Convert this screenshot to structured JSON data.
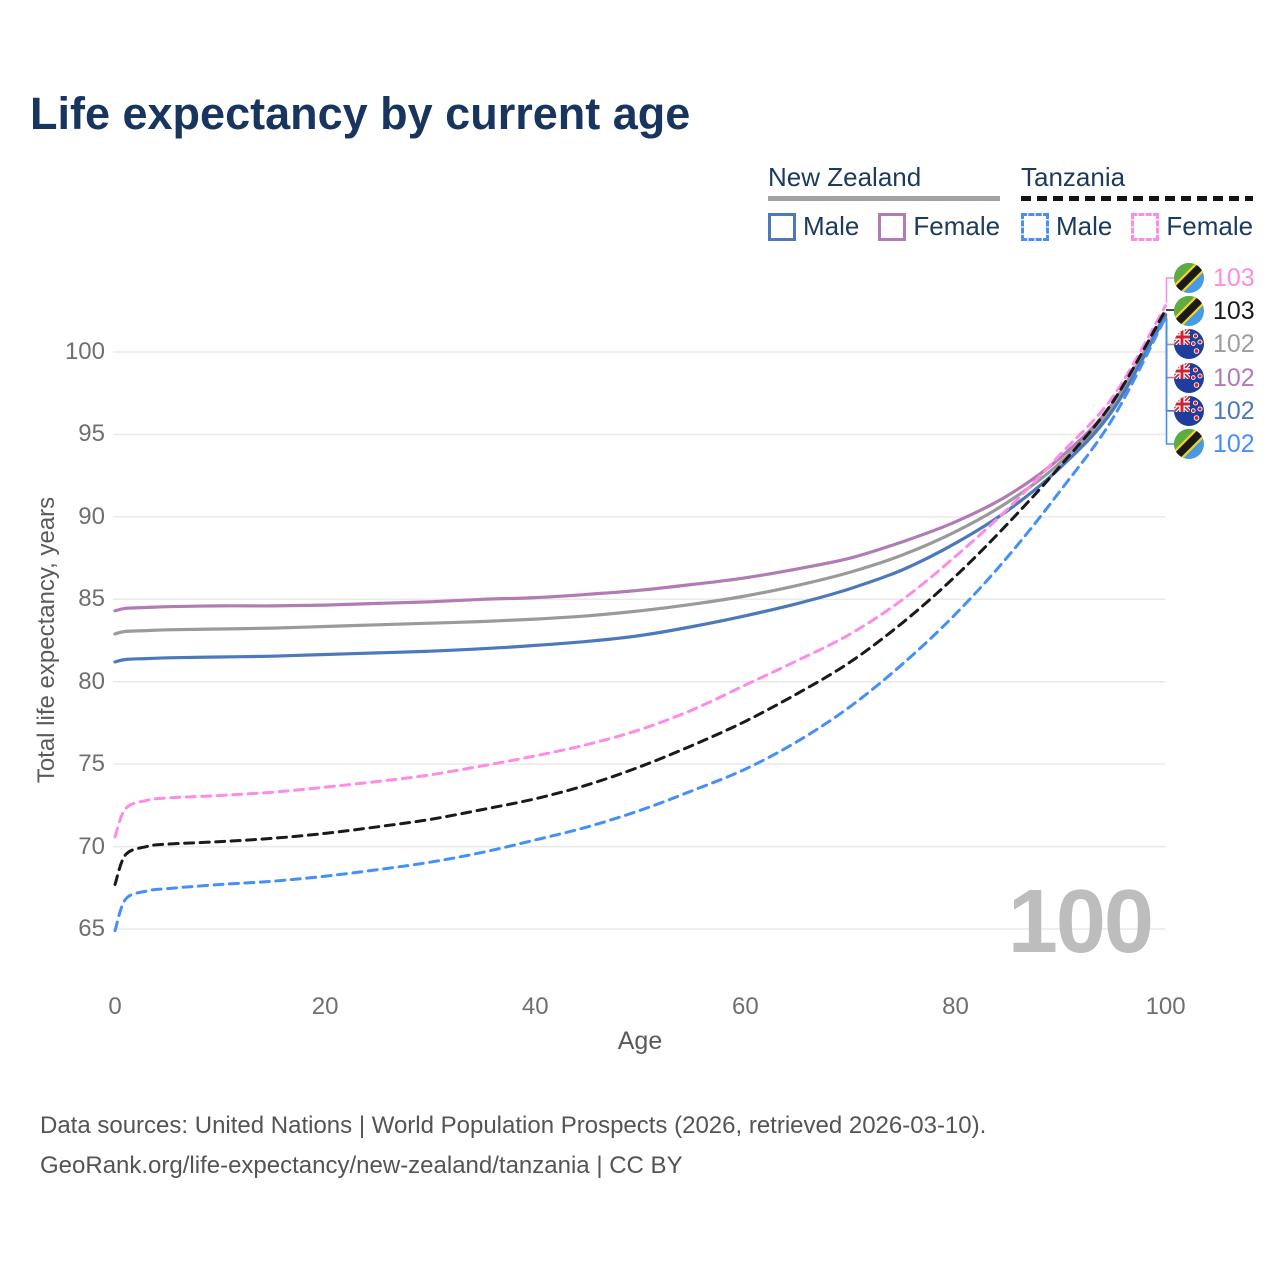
{
  "title": "Life expectancy by current age",
  "legend": {
    "groups": [
      {
        "name": "New Zealand",
        "line_style": "solid",
        "underline_color": "#a2a2a2",
        "items": [
          {
            "label": "Male",
            "color": "#4d79bb"
          },
          {
            "label": "Female",
            "color": "#b17cb4"
          }
        ]
      },
      {
        "name": "Tanzania",
        "line_style": "dashed",
        "underline_color": "#141414",
        "items": [
          {
            "label": "Male",
            "color": "#4590f7"
          },
          {
            "label": "Female",
            "color": "#fc8ce5"
          }
        ]
      }
    ]
  },
  "watermark": "100",
  "footer": {
    "line1": "Data sources: United Nations | World Population Prospects (2026, retrieved 2026-03-10).",
    "line2": "GeoRank.org/life-expectancy/new-zealand/tanzania | CC BY"
  },
  "chart_data": {
    "type": "line",
    "title": "Life expectancy by current age",
    "xlabel": "Age",
    "ylabel": "Total life expectancy, years",
    "x_ticks": [
      0,
      20,
      40,
      60,
      80,
      100
    ],
    "y_ticks": [
      65,
      70,
      75,
      80,
      85,
      90,
      95,
      100
    ],
    "xlim": [
      0,
      100
    ],
    "ylim": [
      63.5,
      104.5
    ],
    "grid": "horizontal",
    "legend_position": "top-right",
    "x": [
      0,
      1,
      3,
      5,
      10,
      15,
      20,
      25,
      30,
      35,
      40,
      45,
      50,
      55,
      60,
      65,
      70,
      75,
      80,
      85,
      90,
      95,
      100
    ],
    "series": [
      {
        "name": "New Zealand Female",
        "country": "New Zealand",
        "sex": "Female",
        "color": "#b17cb4",
        "style": "solid",
        "end_label": "102",
        "label_row": 3,
        "values": [
          84.3,
          84.45,
          84.5,
          84.55,
          84.6,
          84.6,
          84.65,
          84.75,
          84.85,
          85.0,
          85.1,
          85.3,
          85.55,
          85.9,
          86.3,
          86.85,
          87.5,
          88.5,
          89.7,
          91.3,
          93.6,
          96.9,
          102.3
        ]
      },
      {
        "name": "New Zealand Both sexes",
        "country": "New Zealand",
        "sex": "All",
        "color": "#9a9a9a",
        "style": "solid",
        "end_label": "102",
        "label_row": 2,
        "values": [
          82.9,
          83.05,
          83.1,
          83.15,
          83.2,
          83.25,
          83.35,
          83.45,
          83.55,
          83.65,
          83.8,
          84.0,
          84.3,
          84.7,
          85.2,
          85.85,
          86.65,
          87.7,
          89.1,
          90.9,
          93.3,
          96.7,
          102.25
        ]
      },
      {
        "name": "New Zealand Male",
        "country": "New Zealand",
        "sex": "Male",
        "color": "#4d79bb",
        "style": "solid",
        "end_label": "102",
        "label_row": 4,
        "values": [
          81.2,
          81.35,
          81.4,
          81.45,
          81.5,
          81.55,
          81.65,
          81.75,
          81.85,
          82.0,
          82.2,
          82.45,
          82.8,
          83.35,
          84.0,
          84.75,
          85.65,
          86.8,
          88.4,
          90.4,
          93.0,
          96.5,
          102.2
        ]
      },
      {
        "name": "Tanzania Female",
        "country": "Tanzania",
        "sex": "Female",
        "color": "#fc8ce5",
        "style": "dashed",
        "end_label": "103",
        "label_row": 0,
        "values": [
          70.6,
          72.3,
          72.8,
          72.95,
          73.1,
          73.3,
          73.6,
          73.95,
          74.35,
          74.9,
          75.5,
          76.2,
          77.1,
          78.3,
          79.8,
          81.3,
          82.9,
          85.0,
          87.6,
          90.5,
          93.8,
          97.3,
          102.8
        ]
      },
      {
        "name": "Tanzania Both sexes",
        "country": "Tanzania",
        "sex": "All",
        "color": "#1a1a1a",
        "style": "dashed",
        "end_label": "103",
        "label_row": 1,
        "values": [
          67.7,
          69.5,
          70.0,
          70.15,
          70.3,
          70.5,
          70.8,
          71.2,
          71.65,
          72.25,
          72.9,
          73.75,
          74.85,
          76.15,
          77.6,
          79.3,
          81.2,
          83.6,
          86.4,
          89.6,
          93.1,
          97.0,
          102.55
        ]
      },
      {
        "name": "Tanzania Male",
        "country": "Tanzania",
        "sex": "Male",
        "color": "#4590f7",
        "style": "dashed",
        "end_label": "102",
        "label_row": 5,
        "values": [
          64.9,
          66.8,
          67.3,
          67.45,
          67.7,
          67.9,
          68.2,
          68.6,
          69.05,
          69.65,
          70.4,
          71.2,
          72.2,
          73.4,
          74.7,
          76.4,
          78.5,
          81.1,
          84.1,
          87.6,
          91.6,
          96.0,
          102.1
        ]
      }
    ]
  }
}
